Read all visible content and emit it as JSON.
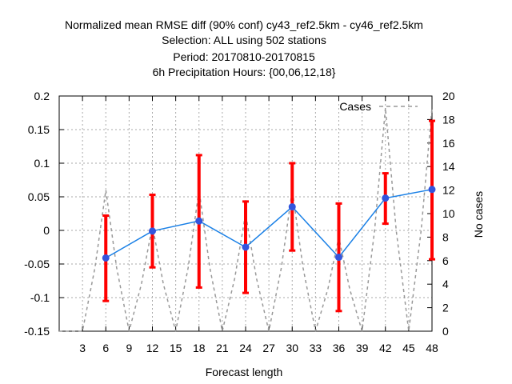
{
  "chart_data": {
    "type": "line",
    "title_lines": [
      "Normalized mean RMSE diff (90% conf) cy43_ref2.5km - cy46_ref2.5km",
      "Selection: ALL using   502 stations",
      "Period: 20170810-20170815",
      "6h Precipitation   Hours: {00,06,12,18}"
    ],
    "xlabel": "Forecast length",
    "ylabel": "",
    "y2label": "No cases",
    "x_ticks": [
      "3",
      "6",
      "9",
      "12",
      "15",
      "18",
      "21",
      "24",
      "27",
      "30",
      "33",
      "36",
      "39",
      "42",
      "45",
      "48"
    ],
    "xlim": [
      0,
      48
    ],
    "ylim": [
      -0.15,
      0.2
    ],
    "y_ticks": [
      "-0.15",
      "-0.1",
      "-0.05",
      "0",
      "0.05",
      "0.1",
      "0.15",
      "0.2"
    ],
    "y2lim": [
      0,
      20
    ],
    "y2_ticks": [
      "0",
      "2",
      "4",
      "6",
      "8",
      "10",
      "12",
      "14",
      "16",
      "18",
      "20"
    ],
    "grid": true,
    "legend": {
      "position": "top-right",
      "label": "Cases"
    },
    "colors": {
      "line": "#1a80e6",
      "marker": "#3355dd",
      "error_bar": "#ff0000",
      "cases": "#999999"
    },
    "series": {
      "x": [
        6,
        12,
        18,
        24,
        30,
        36,
        42,
        48
      ],
      "values": [
        -0.041,
        -0.001,
        0.014,
        -0.025,
        0.035,
        -0.04,
        0.048,
        0.061
      ],
      "lower": [
        -0.105,
        -0.055,
        -0.085,
        -0.093,
        -0.03,
        -0.12,
        0.01,
        -0.043
      ],
      "upper": [
        0.022,
        0.053,
        0.112,
        0.043,
        0.1,
        0.04,
        0.085,
        0.163
      ]
    },
    "cases": {
      "x": [
        6,
        12,
        18,
        24,
        30,
        36,
        42,
        48
      ],
      "values": [
        12,
        9,
        12,
        10,
        12,
        8,
        19,
        19
      ]
    }
  }
}
